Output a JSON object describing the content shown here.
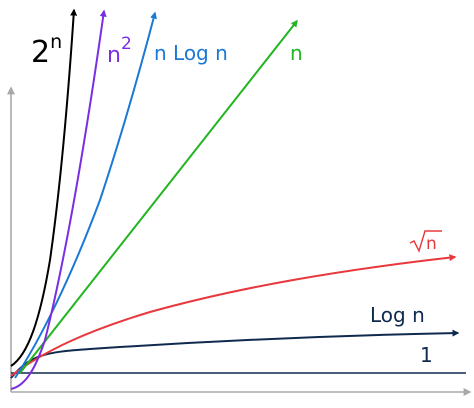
{
  "chart_data": {
    "type": "line",
    "axes": {
      "x_arrow": true,
      "y_arrow": true,
      "tick_labels": false,
      "grid": false
    },
    "series": [
      {
        "name": "2",
        "superscript": "n",
        "color": "#000000"
      },
      {
        "name": "n",
        "superscript": "2",
        "color": "#7a2ee0"
      },
      {
        "name": "n Log n",
        "color": "#1b79d6"
      },
      {
        "name": "n",
        "color": "#22b422"
      },
      {
        "name": "n",
        "radical": true,
        "color": "#e8383d"
      },
      {
        "name": "Log n",
        "color": "#0f2a4d"
      },
      {
        "name": "1",
        "color": "#0f2a4d"
      }
    ],
    "axis_color": "#a9a9a9"
  }
}
